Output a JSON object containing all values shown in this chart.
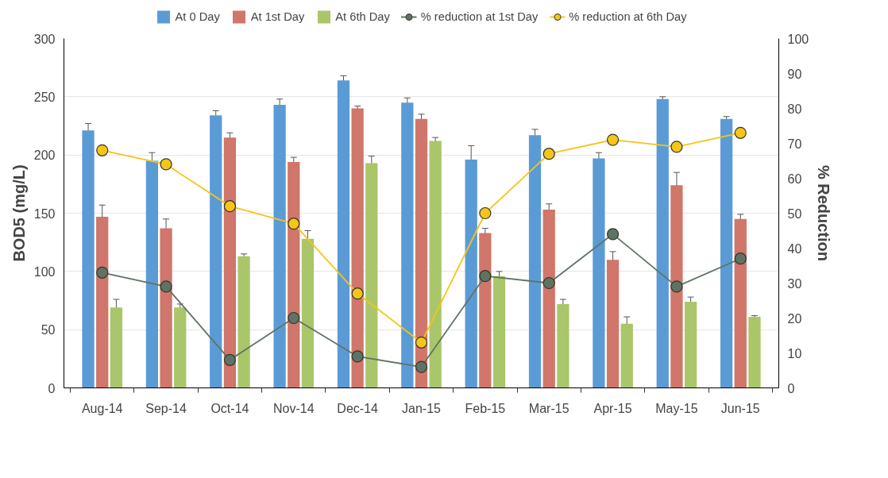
{
  "chart_data": {
    "type": "bar",
    "ylabel": "BOD5 (mg/L)",
    "y2label": "% Reduction",
    "categories": [
      "Aug-14",
      "Sep-14",
      "Oct-14",
      "Nov-14",
      "Dec-14",
      "Jan-15",
      "Feb-15",
      "Mar-15",
      "Apr-15",
      "May-15",
      "Jun-15"
    ],
    "series": [
      {
        "name": "At 0 Day",
        "color": "#5b9bd5",
        "values": [
          221,
          195,
          234,
          243,
          264,
          245,
          196,
          217,
          197,
          248,
          231
        ],
        "errors": [
          6,
          7,
          4,
          5,
          4,
          4,
          12,
          5,
          5,
          2,
          2
        ]
      },
      {
        "name": "At 1st Day",
        "color": "#d0766a",
        "values": [
          147,
          137,
          215,
          194,
          240,
          231,
          133,
          153,
          110,
          174,
          145
        ],
        "errors": [
          10,
          8,
          4,
          4,
          2,
          4,
          4,
          5,
          7,
          11,
          4
        ]
      },
      {
        "name": "At 6th Day",
        "color": "#a9c66b",
        "values": [
          69,
          69,
          113,
          128,
          193,
          212,
          96,
          72,
          55,
          74,
          61
        ],
        "errors": [
          7,
          3,
          2,
          7,
          6,
          3,
          4,
          4,
          6,
          4,
          1
        ]
      },
      {
        "name": "% reduction at 1st Day",
        "type": "line",
        "axis": "y2",
        "color": "#5e7462",
        "values": [
          33,
          29,
          8,
          20,
          9,
          6,
          32,
          30,
          44,
          29,
          37
        ]
      },
      {
        "name": "% reduction at 6th Day",
        "type": "line",
        "axis": "y2",
        "color": "#f5c518",
        "values": [
          68,
          64,
          52,
          47,
          27,
          13,
          50,
          67,
          71,
          69,
          73
        ]
      }
    ],
    "ylim": [
      0,
      300
    ],
    "yticks": [
      0,
      50,
      100,
      150,
      200,
      250,
      300
    ],
    "y2lim": [
      0,
      100
    ],
    "y2ticks": [
      0,
      10,
      20,
      30,
      40,
      50,
      60,
      70,
      80,
      90,
      100
    ],
    "grid": "y",
    "legend": "top",
    "marker": "circle"
  }
}
